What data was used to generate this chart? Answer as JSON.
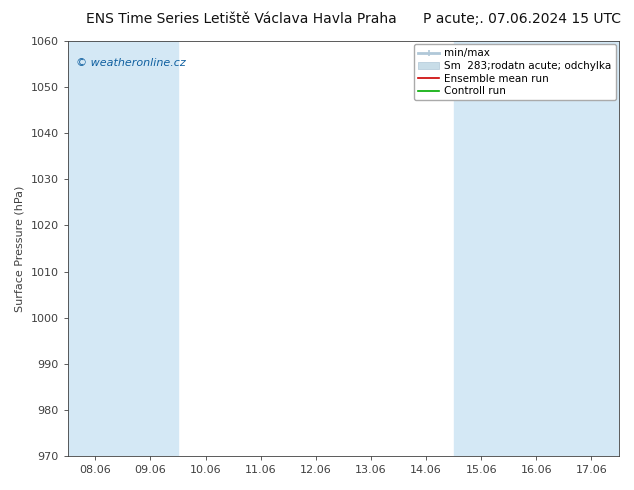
{
  "title": "ENS Time Series Letiště Václava Havla Praha",
  "title_right": "P acute;. 07.06.2024 15 UTC",
  "ylabel": "Surface Pressure (hPa)",
  "ylim": [
    970,
    1060
  ],
  "yticks": [
    970,
    980,
    990,
    1000,
    1010,
    1020,
    1030,
    1040,
    1050,
    1060
  ],
  "xtick_labels": [
    "08.06",
    "09.06",
    "10.06",
    "11.06",
    "12.06",
    "13.06",
    "14.06",
    "15.06",
    "16.06",
    "17.06"
  ],
  "xtick_positions": [
    0,
    1,
    2,
    3,
    4,
    5,
    6,
    7,
    8,
    9
  ],
  "shaded_bands": [
    0,
    1,
    7,
    8,
    9
  ],
  "band_color": "#d4e8f5",
  "background_color": "#ffffff",
  "plot_bg_color": "#ffffff",
  "watermark": "© weatheronline.cz",
  "watermark_color": "#1060a0",
  "legend_label_1": "min/max",
  "legend_label_2": "Sm  283;rodatn acute; odchylka",
  "legend_label_3": "Ensemble mean run",
  "legend_label_4": "Controll run",
  "legend_color_1": "#b0c8d8",
  "legend_color_2": "#c8dde8",
  "legend_color_3": "#cc0000",
  "legend_color_4": "#00aa00",
  "font_size_title": 10,
  "font_size_ticks": 8,
  "font_size_ylabel": 8,
  "font_size_legend": 7.5,
  "font_size_watermark": 8,
  "tick_color": "#404040",
  "spine_color": "#404040"
}
